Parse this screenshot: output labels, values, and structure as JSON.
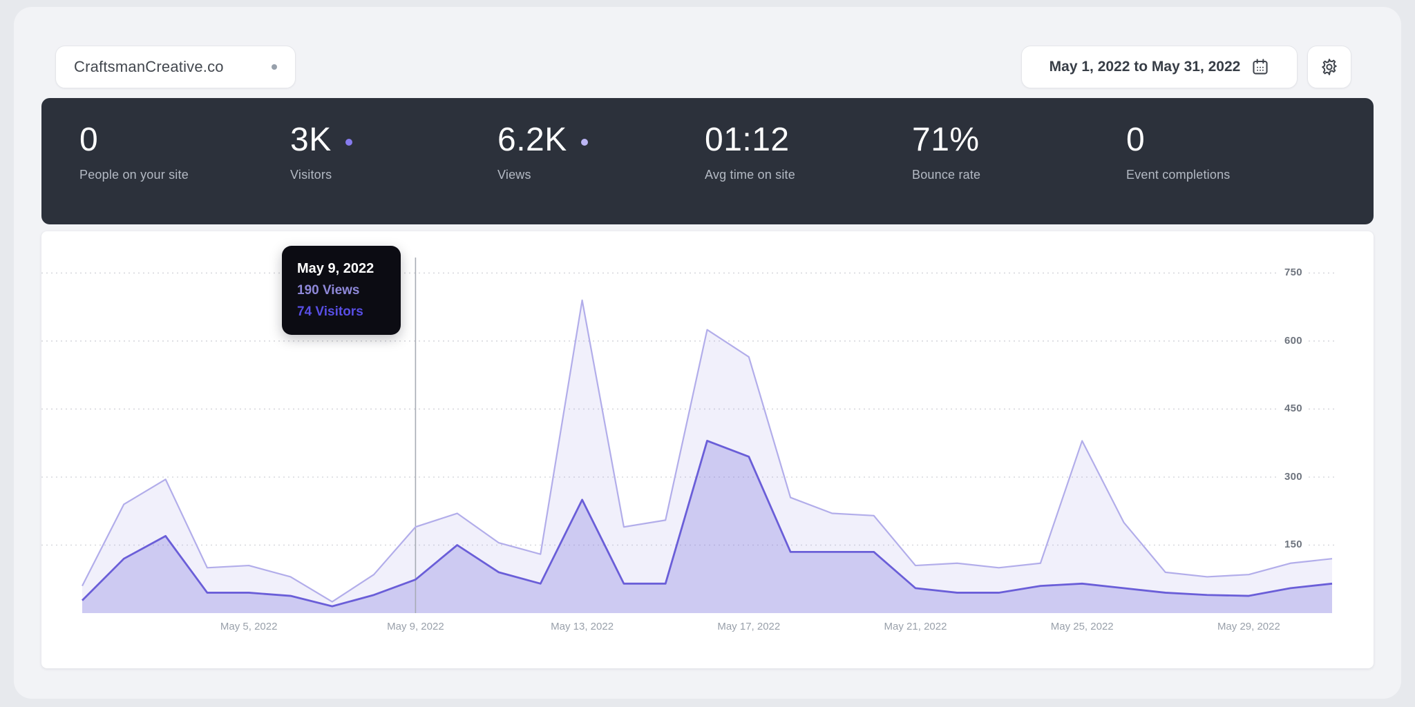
{
  "header": {
    "site_name": "CraftsmanCreative.co",
    "date_range": "May 1, 2022 to May 31, 2022"
  },
  "stats": [
    {
      "value": "0",
      "label": "People on your site"
    },
    {
      "value": "3K",
      "label": "Visitors",
      "dot": "#867bee"
    },
    {
      "value": "6.2K",
      "label": "Views",
      "dot": "#bcb6f4"
    },
    {
      "value": "01:12",
      "label": "Avg time on site"
    },
    {
      "value": "71%",
      "label": "Bounce rate"
    },
    {
      "value": "0",
      "label": "Event completions"
    }
  ],
  "tooltip": {
    "day": 9,
    "date": "May 9, 2022",
    "views_label": "190 Views",
    "visitors_label": "74 Visitors"
  },
  "chart_data": {
    "type": "area",
    "title": "",
    "xlabel": "",
    "ylabel": "",
    "categories": [
      "May 1",
      "May 2",
      "May 3",
      "May 4",
      "May 5",
      "May 6",
      "May 7",
      "May 8",
      "May 9",
      "May 10",
      "May 11",
      "May 12",
      "May 13",
      "May 14",
      "May 15",
      "May 16",
      "May 17",
      "May 18",
      "May 19",
      "May 20",
      "May 21",
      "May 22",
      "May 23",
      "May 24",
      "May 25",
      "May 26",
      "May 27",
      "May 28",
      "May 29",
      "May 30",
      "May 31"
    ],
    "series": [
      {
        "name": "Views",
        "color": "#b2adea",
        "fill": "rgba(170,164,232,0.16)",
        "values": [
          60,
          240,
          295,
          100,
          105,
          80,
          25,
          85,
          190,
          220,
          155,
          130,
          690,
          190,
          205,
          625,
          565,
          255,
          220,
          215,
          105,
          110,
          100,
          110,
          380,
          200,
          90,
          80,
          85,
          110,
          120
        ]
      },
      {
        "name": "Visitors",
        "color": "#6a5ed8",
        "fill": "rgba(130,121,224,0.32)",
        "values": [
          28,
          120,
          170,
          45,
          45,
          38,
          15,
          40,
          74,
          150,
          90,
          65,
          250,
          65,
          65,
          380,
          345,
          135,
          135,
          135,
          55,
          45,
          45,
          60,
          65,
          55,
          45,
          40,
          38,
          55,
          65
        ]
      }
    ],
    "y_ticks": [
      150,
      300,
      450,
      600,
      750
    ],
    "ylim": [
      0,
      790
    ],
    "x_ticks": [
      {
        "day": 5,
        "label": "May 5, 2022"
      },
      {
        "day": 9,
        "label": "May 9, 2022"
      },
      {
        "day": 13,
        "label": "May 13, 2022"
      },
      {
        "day": 17,
        "label": "May 17, 2022"
      },
      {
        "day": 21,
        "label": "May 21, 2022"
      },
      {
        "day": 25,
        "label": "May 25, 2022"
      },
      {
        "day": 29,
        "label": "May 29, 2022"
      }
    ],
    "grid": "horizontal-dotted",
    "legend_position": "none",
    "grid_color": "#d7d8dd",
    "highlight_line_color": "#a7acb4"
  }
}
